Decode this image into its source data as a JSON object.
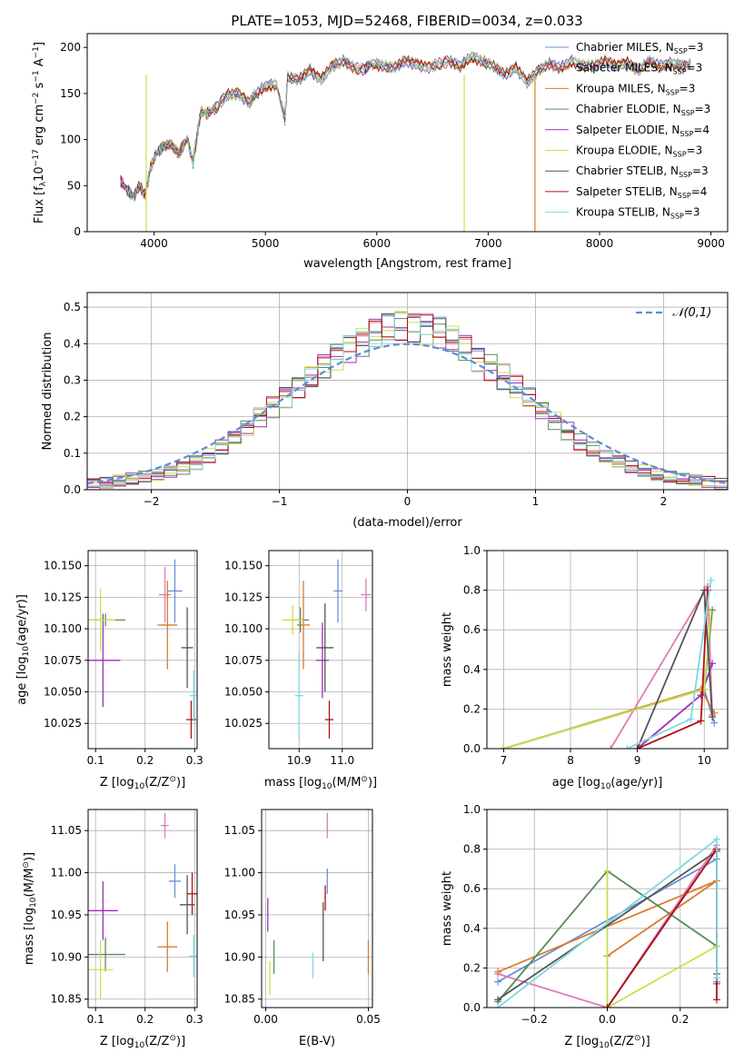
{
  "title": "PLATE=1053, MJD=52468, FIBERID=0034, z=0.033",
  "colors": {
    "Chabrier MILES": "#6a8fd8",
    "Salpeter MILES": "#e07bb5",
    "Kroupa MILES": "#d97c2b",
    "Chabrier ELODIE": "#5a8a5a",
    "Salpeter ELODIE": "#a02db8",
    "Kroupa ELODIE": "#c8e04a",
    "Chabrier STELIB": "#555555",
    "Salpeter STELIB": "#b01010",
    "Kroupa STELIB": "#7fd8e0"
  },
  "models": [
    {
      "name": "Chabrier MILES",
      "nssp": 3
    },
    {
      "name": "Salpeter MILES",
      "nssp": 3
    },
    {
      "name": "Kroupa MILES",
      "nssp": 3
    },
    {
      "name": "Chabrier ELODIE",
      "nssp": 3
    },
    {
      "name": "Salpeter ELODIE",
      "nssp": 4
    },
    {
      "name": "Kroupa ELODIE",
      "nssp": 3
    },
    {
      "name": "Chabrier STELIB",
      "nssp": 3
    },
    {
      "name": "Salpeter STELIB",
      "nssp": 4
    },
    {
      "name": "Kroupa STELIB",
      "nssp": 3
    }
  ],
  "chart_data": [
    {
      "id": "spectrum",
      "type": "line",
      "xlabel": "wavelength [Angstrom, rest frame]",
      "ylabel_parts": [
        "Flux [f",
        "λ",
        "10",
        "−17",
        " erg cm",
        "−2",
        " s",
        "−1",
        " A",
        "−1",
        "]"
      ],
      "xlim": [
        3400,
        9150
      ],
      "ylim": [
        0,
        215
      ],
      "xticks": [
        4000,
        5000,
        6000,
        7000,
        8000,
        9000
      ],
      "yticks": [
        0,
        50,
        100,
        150,
        200
      ],
      "legend_prefix": "N",
      "legend_sub": "SSP",
      "spectrum_x": [
        3700,
        3760,
        3820,
        3870,
        3920,
        3970,
        4020,
        4080,
        4150,
        4220,
        4300,
        4350,
        4420,
        4480,
        4560,
        4650,
        4750,
        4860,
        4900,
        5000,
        5100,
        5175,
        5200,
        5300,
        5400,
        5500,
        5600,
        5700,
        5800,
        5890,
        5950,
        6050,
        6150,
        6250,
        6350,
        6450,
        6562,
        6650,
        6750,
        6850,
        6950,
        7050,
        7150,
        7250,
        7350,
        7450,
        7550,
        7650,
        7750,
        7850,
        7950,
        8050,
        8150,
        8250,
        8350,
        8450,
        8550,
        8650,
        8750,
        8830
      ],
      "spectrum_y": [
        55,
        45,
        38,
        50,
        40,
        70,
        85,
        92,
        95,
        85,
        100,
        75,
        130,
        128,
        135,
        148,
        150,
        140,
        148,
        158,
        160,
        122,
        168,
        165,
        175,
        165,
        180,
        185,
        178,
        176,
        183,
        180,
        178,
        185,
        182,
        178,
        182,
        185,
        180,
        190,
        185,
        180,
        170,
        178,
        162,
        175,
        182,
        178,
        185,
        180,
        180,
        185,
        180,
        183,
        175,
        185,
        180,
        183,
        180,
        182
      ],
      "drop_lines": [
        {
          "model": "Kroupa ELODIE",
          "x": 3930
        },
        {
          "model": "Kroupa ELODIE",
          "x": 6785
        },
        {
          "model": "Kroupa MILES",
          "x": 7420
        }
      ]
    },
    {
      "id": "residuals",
      "type": "histogram",
      "xlabel": "(data-model)/error",
      "ylabel": "Normed distribution",
      "xlim": [
        -2.5,
        2.5
      ],
      "ylim": [
        0,
        0.54
      ],
      "xticks": [
        -2,
        -1,
        0,
        1,
        2
      ],
      "yticks": [
        0.0,
        0.1,
        0.2,
        0.3,
        0.4,
        0.5
      ],
      "bin_start": -2.5,
      "bin_width": 0.1,
      "base_hist": [
        0.015,
        0.02,
        0.025,
        0.03,
        0.035,
        0.04,
        0.05,
        0.06,
        0.075,
        0.095,
        0.12,
        0.145,
        0.17,
        0.2,
        0.23,
        0.26,
        0.285,
        0.31,
        0.34,
        0.37,
        0.395,
        0.41,
        0.43,
        0.445,
        0.455,
        0.455,
        0.445,
        0.43,
        0.41,
        0.39,
        0.365,
        0.34,
        0.31,
        0.28,
        0.25,
        0.22,
        0.19,
        0.16,
        0.13,
        0.11,
        0.09,
        0.075,
        0.06,
        0.05,
        0.04,
        0.035,
        0.03,
        0.025,
        0.02,
        0.015
      ],
      "gaussian_label": "𝒩(0,1)"
    },
    {
      "id": "age_vs_Z",
      "type": "scatter",
      "xlabel_parts": [
        "Z [log",
        "10",
        "(Z/Z",
        "⊙",
        ")]"
      ],
      "ylabel_parts": [
        "age  [log",
        "10",
        "(age/yr)]"
      ],
      "xlim": [
        0.085,
        0.305
      ],
      "ylim": [
        10.005,
        10.162
      ],
      "xticks": [
        0.1,
        0.2,
        0.3
      ],
      "yticks": [
        10.025,
        10.05,
        10.075,
        10.1,
        10.125,
        10.15
      ],
      "points": [
        {
          "model": "Chabrier MILES",
          "x": 0.26,
          "y": 10.13,
          "xerr": 0.015,
          "yerr": 0.025
        },
        {
          "model": "Salpeter MILES",
          "x": 0.24,
          "y": 10.127,
          "xerr": 0.012,
          "yerr": 0.022
        },
        {
          "model": "Kroupa MILES",
          "x": 0.245,
          "y": 10.103,
          "xerr": 0.02,
          "yerr": 0.035
        },
        {
          "model": "Chabrier ELODIE",
          "x": 0.12,
          "y": 10.107,
          "xerr": 0.04,
          "yerr": 0.005
        },
        {
          "model": "Salpeter ELODIE",
          "x": 0.115,
          "y": 10.075,
          "xerr": 0.035,
          "yerr": 0.037
        },
        {
          "model": "Kroupa ELODIE",
          "x": 0.11,
          "y": 10.107,
          "xerr": 0.03,
          "yerr": 0.025
        },
        {
          "model": "Chabrier STELIB",
          "x": 0.285,
          "y": 10.085,
          "xerr": 0.012,
          "yerr": 0.032
        },
        {
          "model": "Salpeter STELIB",
          "x": 0.293,
          "y": 10.028,
          "xerr": 0.01,
          "yerr": 0.015
        },
        {
          "model": "Kroupa STELIB",
          "x": 0.298,
          "y": 10.047,
          "xerr": 0.008,
          "yerr": 0.02
        }
      ]
    },
    {
      "id": "age_vs_mass",
      "type": "scatter",
      "xlabel_parts": [
        "mass [log",
        "10",
        "(M/M",
        "⊙",
        ")]"
      ],
      "xlim": [
        10.83,
        11.07
      ],
      "ylim": [
        10.005,
        10.162
      ],
      "xticks": [
        10.9,
        11.0
      ],
      "yticks": [
        10.025,
        10.05,
        10.075,
        10.1,
        10.125,
        10.15
      ],
      "points": [
        {
          "model": "Chabrier MILES",
          "x": 10.99,
          "y": 10.13,
          "xerr": 0.01,
          "yerr": 0.025
        },
        {
          "model": "Salpeter MILES",
          "x": 11.055,
          "y": 10.127,
          "xerr": 0.012,
          "yerr": 0.013
        },
        {
          "model": "Kroupa MILES",
          "x": 10.91,
          "y": 10.103,
          "xerr": 0.015,
          "yerr": 0.035
        },
        {
          "model": "Chabrier ELODIE",
          "x": 10.903,
          "y": 10.107,
          "xerr": 0.02,
          "yerr": 0.01
        },
        {
          "model": "Salpeter ELODIE",
          "x": 10.954,
          "y": 10.075,
          "xerr": 0.015,
          "yerr": 0.03
        },
        {
          "model": "Kroupa ELODIE",
          "x": 10.885,
          "y": 10.107,
          "xerr": 0.025,
          "yerr": 0.012
        },
        {
          "model": "Chabrier STELIB",
          "x": 10.96,
          "y": 10.085,
          "xerr": 0.02,
          "yerr": 0.035
        },
        {
          "model": "Salpeter STELIB",
          "x": 10.97,
          "y": 10.028,
          "xerr": 0.01,
          "yerr": 0.015
        },
        {
          "model": "Kroupa STELIB",
          "x": 10.9,
          "y": 10.047,
          "xerr": 0.01,
          "yerr": 0.035
        }
      ]
    },
    {
      "id": "weight_vs_age",
      "type": "line",
      "xlabel_parts": [
        "age  [log",
        "10",
        "(age/yr)]"
      ],
      "ylabel": "mass weight",
      "xlim": [
        6.75,
        10.35
      ],
      "ylim": [
        0,
        1
      ],
      "xticks": [
        7,
        8,
        9,
        10
      ],
      "yticks": [
        0.0,
        0.2,
        0.4,
        0.6,
        0.8,
        1.0
      ],
      "series": [
        {
          "model": "Chabrier MILES",
          "x": [
            7.0,
            10.0,
            10.15
          ],
          "y": [
            0.0,
            0.3,
            0.13
          ]
        },
        {
          "model": "Salpeter MILES",
          "x": [
            8.6,
            10.05,
            10.12
          ],
          "y": [
            0.0,
            0.82,
            0.17
          ]
        },
        {
          "model": "Kroupa MILES",
          "x": [
            7.0,
            9.95,
            10.15
          ],
          "y": [
            0.0,
            0.3,
            0.18
          ]
        },
        {
          "model": "Chabrier ELODIE",
          "x": [
            7.0,
            10.0,
            10.12
          ],
          "y": [
            0.0,
            0.3,
            0.7
          ]
        },
        {
          "model": "Salpeter ELODIE",
          "x": [
            9.0,
            9.95,
            10.12
          ],
          "y": [
            0.0,
            0.27,
            0.43
          ]
        },
        {
          "model": "Kroupa ELODIE",
          "x": [
            7.0,
            10.0,
            10.1
          ],
          "y": [
            0.0,
            0.3,
            0.69
          ]
        },
        {
          "model": "Chabrier STELIB",
          "x": [
            9.0,
            10.0,
            10.12
          ],
          "y": [
            0.0,
            0.8,
            0.16
          ]
        },
        {
          "model": "Salpeter STELIB",
          "x": [
            9.0,
            9.95,
            10.05
          ],
          "y": [
            0.0,
            0.14,
            0.8
          ]
        },
        {
          "model": "Kroupa STELIB",
          "x": [
            8.85,
            9.8,
            10.1
          ],
          "y": [
            0.0,
            0.15,
            0.85
          ]
        }
      ]
    },
    {
      "id": "mass_vs_Z",
      "type": "scatter",
      "xlabel_parts": [
        "Z [log",
        "10",
        "(Z/Z",
        "⊙",
        ")]"
      ],
      "ylabel_parts": [
        "mass [log",
        "10",
        "(M/M",
        "⊙",
        ")]"
      ],
      "xlim": [
        0.085,
        0.305
      ],
      "ylim": [
        10.84,
        11.075
      ],
      "xticks": [
        0.1,
        0.2,
        0.3
      ],
      "yticks": [
        10.85,
        10.9,
        10.95,
        11.0,
        11.05
      ],
      "points": [
        {
          "model": "Chabrier MILES",
          "x": 0.26,
          "y": 10.99,
          "xerr": 0.012,
          "yerr": 0.02
        },
        {
          "model": "Salpeter MILES",
          "x": 0.24,
          "y": 11.056,
          "xerr": 0.008,
          "yerr": 0.015
        },
        {
          "model": "Kroupa MILES",
          "x": 0.245,
          "y": 10.912,
          "xerr": 0.02,
          "yerr": 0.03
        },
        {
          "model": "Chabrier ELODIE",
          "x": 0.12,
          "y": 10.903,
          "xerr": 0.04,
          "yerr": 0.02
        },
        {
          "model": "Salpeter ELODIE",
          "x": 0.115,
          "y": 10.955,
          "xerr": 0.03,
          "yerr": 0.035
        },
        {
          "model": "Kroupa ELODIE",
          "x": 0.11,
          "y": 10.885,
          "xerr": 0.025,
          "yerr": 0.035
        },
        {
          "model": "Chabrier STELIB",
          "x": 0.285,
          "y": 10.962,
          "xerr": 0.015,
          "yerr": 0.035
        },
        {
          "model": "Salpeter STELIB",
          "x": 0.295,
          "y": 10.975,
          "xerr": 0.01,
          "yerr": 0.025
        },
        {
          "model": "Kroupa STELIB",
          "x": 0.298,
          "y": 10.901,
          "xerr": 0.01,
          "yerr": 0.025
        }
      ]
    },
    {
      "id": "mass_vs_EBV",
      "type": "scatter",
      "xlabel": "E(B-V)",
      "xlim": [
        -0.002,
        0.052
      ],
      "ylim": [
        10.84,
        11.075
      ],
      "xticks": [
        0.0,
        0.05
      ],
      "yticks": [
        10.85,
        10.9,
        10.95,
        11.0,
        11.05
      ],
      "points": [
        {
          "model": "Chabrier MILES",
          "x": 0.03,
          "y": 10.99,
          "xerr": 0,
          "yerr": 0.015
        },
        {
          "model": "Salpeter MILES",
          "x": 0.03,
          "y": 11.056,
          "xerr": 0,
          "yerr": 0.015
        },
        {
          "model": "Kroupa MILES",
          "x": 0.05,
          "y": 10.9,
          "xerr": 0,
          "yerr": 0.02
        },
        {
          "model": "Chabrier ELODIE",
          "x": 0.004,
          "y": 10.9,
          "xerr": 0,
          "yerr": 0.02
        },
        {
          "model": "Salpeter ELODIE",
          "x": 0.001,
          "y": 10.95,
          "xerr": 0,
          "yerr": 0.02
        },
        {
          "model": "Kroupa ELODIE",
          "x": 0.002,
          "y": 10.875,
          "xerr": 0,
          "yerr": 0.02
        },
        {
          "model": "Chabrier STELIB",
          "x": 0.028,
          "y": 10.93,
          "xerr": 0,
          "yerr": 0.035
        },
        {
          "model": "Salpeter STELIB",
          "x": 0.029,
          "y": 10.97,
          "xerr": 0,
          "yerr": 0.015
        },
        {
          "model": "Kroupa STELIB",
          "x": 0.023,
          "y": 10.89,
          "xerr": 0,
          "yerr": 0.015
        }
      ]
    },
    {
      "id": "weight_vs_Z",
      "type": "line",
      "xlabel_parts": [
        "Z [log",
        "10",
        "(Z/Z",
        "⊙",
        ")]"
      ],
      "ylabel": "mass weight",
      "xlim": [
        -0.33,
        0.33
      ],
      "ylim": [
        0,
        1
      ],
      "xticks": [
        -0.2,
        0.0,
        0.2
      ],
      "yticks": [
        0.0,
        0.2,
        0.4,
        0.6,
        0.8,
        1.0
      ],
      "series": [
        {
          "model": "Chabrier MILES",
          "x": [
            -0.3,
            0.3,
            0.3
          ],
          "y": [
            0.13,
            0.75,
            0.13
          ]
        },
        {
          "model": "Salpeter MILES",
          "x": [
            -0.3,
            0.0,
            0.3
          ],
          "y": [
            0.17,
            0.0,
            0.82
          ]
        },
        {
          "model": "Kroupa MILES",
          "x": [
            -0.3,
            0.3,
            0.0
          ],
          "y": [
            0.18,
            0.64,
            0.26
          ]
        },
        {
          "model": "Chabrier ELODIE",
          "x": [
            -0.3,
            0.0,
            0.3
          ],
          "y": [
            0.03,
            0.69,
            0.31
          ]
        },
        {
          "model": "Salpeter ELODIE",
          "x": [
            0.0,
            0.3,
            0.3
          ],
          "y": [
            0.0,
            0.8,
            0.12
          ]
        },
        {
          "model": "Kroupa ELODIE",
          "x": [
            0.0,
            0.0,
            0.3
          ],
          "y": [
            0.69,
            0.0,
            0.31
          ]
        },
        {
          "model": "Chabrier STELIB",
          "x": [
            -0.3,
            0.3,
            0.3
          ],
          "y": [
            0.04,
            0.79,
            0.17
          ]
        },
        {
          "model": "Salpeter STELIB",
          "x": [
            0.0,
            0.3,
            0.3
          ],
          "y": [
            0.0,
            0.8,
            0.04
          ]
        },
        {
          "model": "Kroupa STELIB",
          "x": [
            -0.3,
            0.3,
            0.3
          ],
          "y": [
            0.0,
            0.85,
            0.15
          ]
        }
      ]
    }
  ]
}
